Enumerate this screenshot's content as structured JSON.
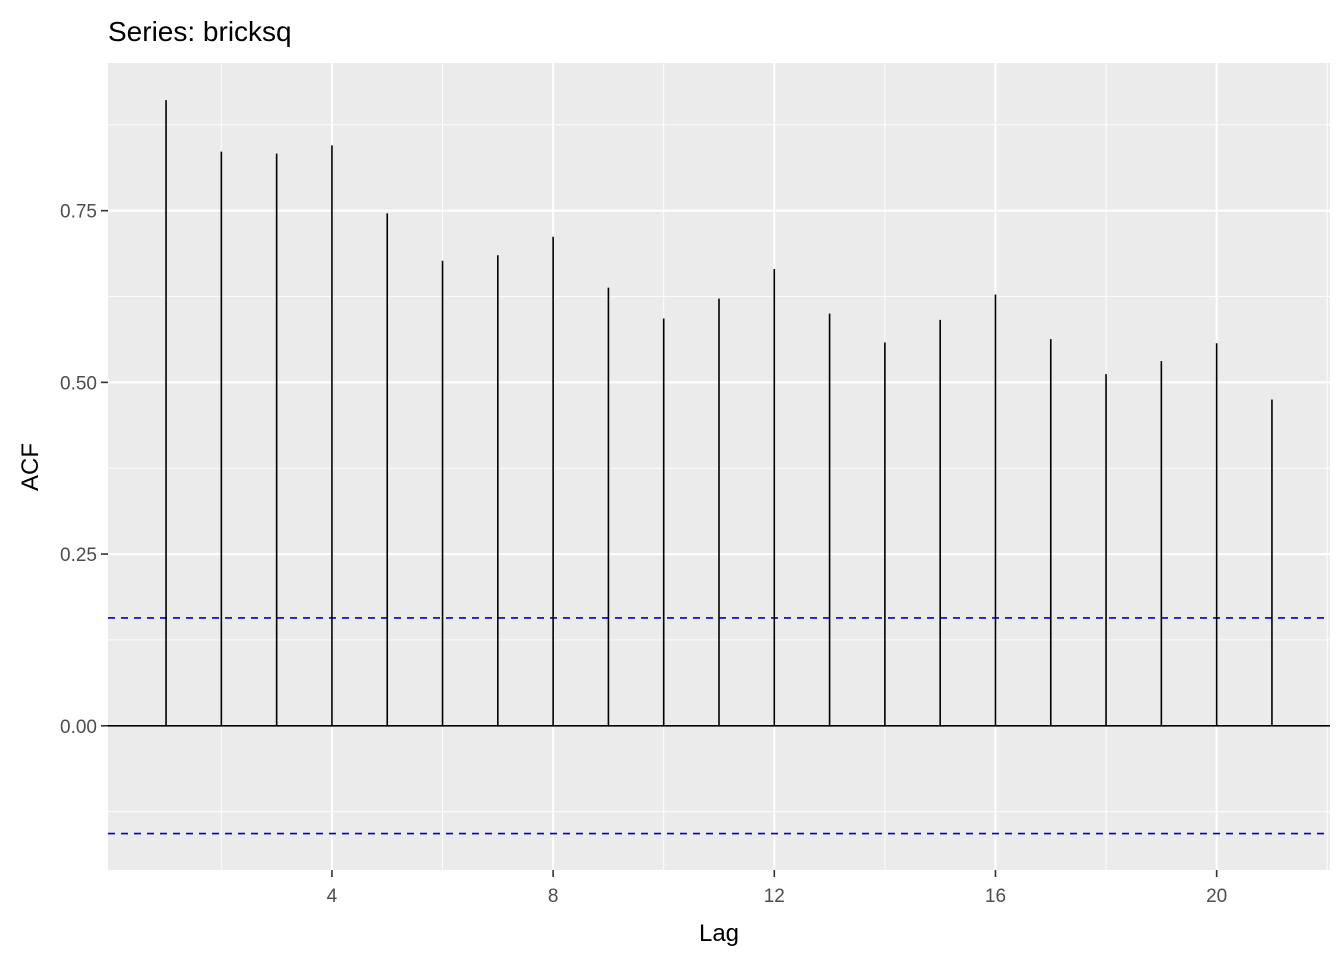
{
  "chart_data": {
    "type": "bar",
    "title": "Series: bricksq",
    "xlabel": "Lag",
    "ylabel": "ACF",
    "x": [
      1,
      2,
      3,
      4,
      5,
      6,
      7,
      8,
      9,
      10,
      11,
      12,
      13,
      14,
      15,
      16,
      17,
      18,
      19,
      20,
      21
    ],
    "values": [
      0.911,
      0.836,
      0.833,
      0.845,
      0.746,
      0.677,
      0.685,
      0.712,
      0.638,
      0.593,
      0.622,
      0.665,
      0.6,
      0.558,
      0.591,
      0.628,
      0.563,
      0.512,
      0.531,
      0.557,
      0.475
    ],
    "confidence_bounds": [
      0.157,
      -0.157
    ],
    "xlim": [
      -0.05,
      22.05
    ],
    "ylim": [
      -0.21,
      0.965
    ],
    "x_ticks": [
      4,
      8,
      12,
      16,
      20
    ],
    "y_ticks": [
      0.0,
      0.25,
      0.5,
      0.75
    ],
    "x_tick_labels": [
      "4",
      "8",
      "12",
      "16",
      "20"
    ],
    "y_tick_labels": [
      "0.00",
      "0.25",
      "0.50",
      "0.75"
    ],
    "grid": true,
    "colors": {
      "panel": "#EBEBEB",
      "grid": "#FFFFFF",
      "bars": "#000000",
      "bounds": "#0000CC",
      "text": "#000000",
      "tick_text": "#4D4D4D"
    }
  }
}
